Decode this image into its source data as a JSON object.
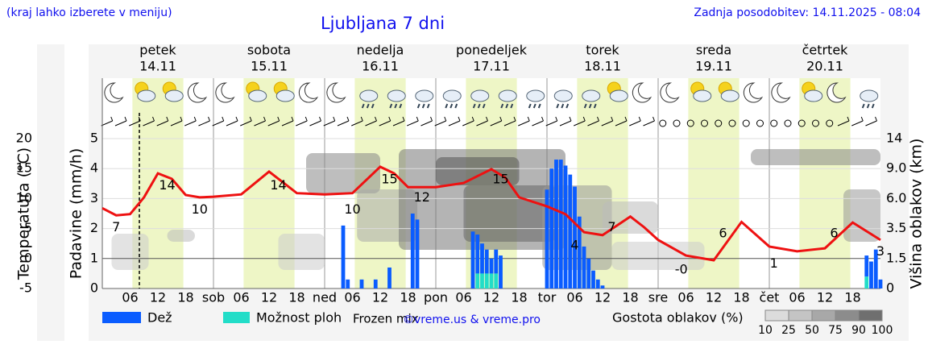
{
  "header": {
    "note": "(kraj lahko izberete v meniju)",
    "title": "Ljubljana 7 dni",
    "updated": "Zadnja posodobitev: 14.11.2025 - 08:04"
  },
  "days": [
    {
      "name": "petek",
      "date": "14.11",
      "weekend": false
    },
    {
      "name": "sobota",
      "date": "15.11",
      "weekend": true
    },
    {
      "name": "nedelja",
      "date": "16.11",
      "weekend": true
    },
    {
      "name": "ponedeljek",
      "date": "17.11",
      "weekend": false
    },
    {
      "name": "torek",
      "date": "18.11",
      "weekend": false
    },
    {
      "name": "sreda",
      "date": "19.11",
      "weekend": false
    },
    {
      "name": "četrtek",
      "date": "20.11",
      "weekend": false
    }
  ],
  "chart_data": {
    "type": "meteogram",
    "xlim": [
      0,
      168
    ],
    "xticks": [
      {
        "value": 6,
        "label": "06"
      },
      12,
      18,
      {
        "value": 24,
        "label": "sob"
      },
      {
        "value": 30,
        "label": "06"
      },
      {
        "value": 36,
        "label": "12"
      },
      {
        "value": 42,
        "label": "18"
      },
      {
        "value": 48,
        "label": "ned"
      },
      {
        "value": 54,
        "label": "06"
      },
      {
        "value": 60,
        "label": "12"
      },
      {
        "value": 66,
        "label": "18"
      },
      {
        "value": 72,
        "label": "pon"
      },
      {
        "value": 78,
        "label": "06"
      },
      {
        "value": 84,
        "label": "12"
      },
      {
        "value": 90,
        "label": "18"
      },
      {
        "value": 96,
        "label": "tor"
      },
      {
        "value": 102,
        "label": "06"
      },
      {
        "value": 108,
        "label": "12"
      },
      {
        "value": 114,
        "label": "18"
      },
      {
        "value": 120,
        "label": "sre"
      },
      {
        "value": 126,
        "label": "06"
      },
      {
        "value": 132,
        "label": "12"
      },
      {
        "value": 138,
        "label": "18"
      },
      {
        "value": 144,
        "label": "čet"
      },
      {
        "value": 150,
        "label": "06"
      },
      {
        "value": 156,
        "label": "12"
      },
      {
        "value": 162,
        "label": "18"
      }
    ],
    "ylim": [
      0,
      5
    ],
    "yticks": [
      0,
      1,
      2,
      3,
      4,
      5
    ],
    "y_label": "Padavine (mm/h)",
    "templim": [
      -5,
      20
    ],
    "temp_ticks": [
      -5,
      0,
      5,
      10,
      15,
      20
    ],
    "temp_label": "Temperatura (°C)",
    "temp_color": "#ff0000",
    "y2ticks": [
      0,
      1.5,
      3.5,
      {
        "value": 6,
        "label": "6.0"
      },
      {
        "value": 9,
        "label": "9.0"
      },
      14
    ],
    "y2_label": "Višina oblakov (km)",
    "now": 8,
    "temperature": {
      "color": "#ee1111",
      "x": [
        0,
        3,
        6,
        9,
        12,
        15,
        18,
        21,
        24,
        30,
        36,
        42,
        48,
        54,
        60,
        63,
        66,
        72,
        78,
        84,
        87,
        90,
        96,
        100,
        104,
        108,
        114,
        117,
        120,
        126,
        132,
        138,
        144,
        150,
        156,
        162,
        168
      ],
      "values": [
        8.4,
        7.2,
        7.4,
        10.2,
        14.2,
        13.3,
        10.6,
        10.2,
        10.3,
        10.7,
        14.5,
        10.9,
        10.7,
        10.9,
        15.3,
        14.2,
        11.9,
        11.9,
        12.6,
        14.9,
        13.5,
        10.2,
        8.7,
        7.4,
        4.4,
        3.9,
        7.0,
        5.2,
        3.1,
        0.5,
        -0.3,
        6.1,
        2.0,
        1.2,
        1.7,
        6.0,
        3.1
      ]
    },
    "extremes": {
      "x": [
        3,
        14,
        21,
        38,
        54,
        62,
        69,
        86,
        102,
        110,
        125,
        134,
        145,
        158,
        168
      ],
      "values": [
        7,
        14,
        10,
        14,
        10,
        15,
        12,
        15,
        4,
        7,
        0,
        6,
        1,
        6,
        3
      ],
      "value_labels": [
        "7",
        "14",
        "10",
        "14",
        "10",
        "15",
        "12",
        "15",
        "4",
        "7",
        "-0",
        "6",
        "1",
        "6",
        "3"
      ]
    },
    "precip": {
      "x": [
        52,
        53,
        56,
        59,
        62,
        67,
        68,
        80,
        81,
        82,
        83,
        84,
        85,
        86,
        96,
        97,
        98,
        99,
        100,
        101,
        102,
        103,
        104,
        105,
        106,
        107,
        108,
        165,
        166,
        167,
        168
      ],
      "series": [
        {
          "name": "Dež",
          "color": "#0a5cff",
          "values": [
            2.1,
            0.3,
            0.3,
            0.3,
            0.7,
            2.5,
            2.3,
            1.9,
            1.3,
            1.0,
            0.8,
            0.5,
            0.8,
            1.1,
            3.3,
            4.0,
            4.3,
            4.3,
            4.1,
            3.8,
            3.4,
            2.4,
            1.4,
            1.0,
            0.6,
            0.3,
            0.1,
            0.7,
            0.9,
            1.3,
            0.3
          ]
        },
        {
          "name": "Možnost ploh",
          "color": "#22ddc8",
          "values": [
            0,
            0,
            0,
            0,
            0,
            0,
            0,
            0,
            0.5,
            0.5,
            0.5,
            0.5,
            0.5,
            0,
            0,
            0,
            0,
            0,
            0,
            0,
            0,
            0,
            0,
            0,
            0,
            0,
            0,
            0.4,
            0,
            0,
            0
          ]
        }
      ]
    },
    "frozen_label": "Frozen mix",
    "credit": "©vreme.us & vreme.pro",
    "cloud_legend": {
      "title": "Gostota oblakov (%)",
      "ticks": [
        10,
        25,
        50,
        75,
        90,
        100
      ]
    }
  }
}
